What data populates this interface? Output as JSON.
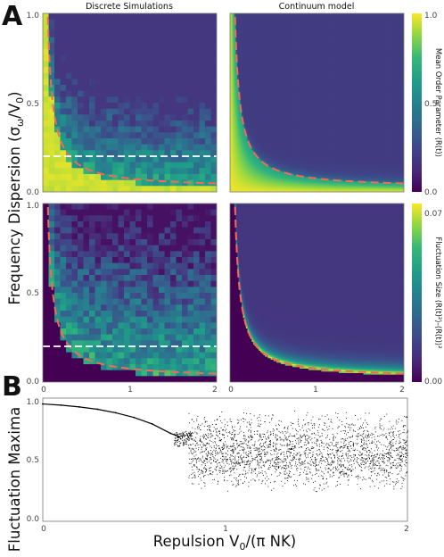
{
  "figure": {
    "panel_a_letter": "A",
    "panel_b_letter": "B",
    "col_title_left": "Discrete Simulations",
    "col_title_right": "Continuum model",
    "y_label_a": "Frequency Dispersion (σω/V0)",
    "y_label_a_parts": {
      "main": "Frequency Dispersion (σ",
      "sub1": "ω",
      "mid": "/V",
      "sub2": "0",
      "end": ")"
    },
    "y_label_b": "Fluctuation Maxima",
    "x_label": "Repulsion V0/(π NK)",
    "x_label_parts": {
      "main": "Repulsion V",
      "sub": "0",
      "end": "/(π NK)"
    },
    "colorbar_top": {
      "label": "Mean Order Parameter ⟨R(t)⟩",
      "label_main": "Mean Order Parameter  ",
      "label_sym": "⟨R(t)⟩",
      "ticks": [
        "1.0",
        "0.5",
        "0.0"
      ]
    },
    "colorbar_bottom": {
      "label": "Fluctuation Size ⟨R(t)²⟩-⟨R(t)⟩²",
      "label_main": "Fluctuation Size  ",
      "label_sym": "⟨R(t)²⟩-⟨R(t)⟩²",
      "ticks": [
        "0.07",
        "0.00"
      ]
    }
  },
  "chart_data": [
    {
      "type": "heatmap",
      "panel": "A-top-left",
      "title": "Discrete Simulations",
      "x_range": [
        0,
        2
      ],
      "y_range": [
        0,
        1
      ],
      "x_ticks": [],
      "y_ticks": [
        "1.0",
        "0.5",
        "0.0"
      ],
      "colorbar": "Mean Order Parameter ⟨R(t)⟩",
      "color_range": [
        0,
        1
      ],
      "dashed_reference": {
        "color": "#f46a55",
        "curve": "critical boundary"
      },
      "dashed_horizontal": {
        "y": 0.2,
        "color": "#ffffff"
      }
    },
    {
      "type": "heatmap",
      "panel": "A-top-right",
      "title": "Continuum model",
      "x_range": [
        0,
        2
      ],
      "y_range": [
        0,
        1
      ],
      "colorbar": "Mean Order Parameter ⟨R(t)⟩",
      "color_range": [
        0,
        1
      ],
      "dashed_reference": {
        "color": "#f46a55",
        "curve": "critical boundary"
      }
    },
    {
      "type": "heatmap",
      "panel": "A-bottom-left",
      "x_range": [
        0,
        2
      ],
      "y_range": [
        0,
        1
      ],
      "x_ticks": [
        "0",
        "1",
        "2"
      ],
      "y_ticks": [
        "1.0",
        "0.5",
        "0.0"
      ],
      "colorbar": "Fluctuation Size ⟨R(t)²⟩-⟨R(t)⟩²",
      "color_range": [
        0,
        0.07
      ],
      "dashed_reference": {
        "color": "#f46a55",
        "curve": "critical boundary"
      },
      "dashed_horizontal": {
        "y": 0.2,
        "color": "#ffffff"
      }
    },
    {
      "type": "heatmap",
      "panel": "A-bottom-right",
      "x_range": [
        0,
        2
      ],
      "y_range": [
        0,
        1
      ],
      "x_ticks": [
        "0",
        "1",
        "2"
      ],
      "colorbar": "Fluctuation Size ⟨R(t)²⟩-⟨R(t)⟩²",
      "color_range": [
        0,
        0.07
      ],
      "dashed_reference": {
        "color": "#f46a55",
        "curve": "critical boundary"
      }
    },
    {
      "type": "scatter",
      "panel": "B",
      "xlabel": "Repulsion V0/(π NK)",
      "ylabel": "Fluctuation Maxima",
      "xlim": [
        0,
        2
      ],
      "ylim": [
        0,
        1.05
      ],
      "x_ticks": [
        "0",
        "1",
        "2"
      ],
      "y_ticks": [
        "1.0",
        "0.5",
        "0.0"
      ],
      "description": "single-valued branch from 1.0 at x=0 decreasing to ~0.72 at x≈0.72, then a dense scattered band spanning ~0.05–0.95 for x from ~0.8 to 2",
      "branch_points": [
        {
          "x": 0.0,
          "y": 1.0
        },
        {
          "x": 0.1,
          "y": 0.99
        },
        {
          "x": 0.2,
          "y": 0.975
        },
        {
          "x": 0.3,
          "y": 0.955
        },
        {
          "x": 0.4,
          "y": 0.925
        },
        {
          "x": 0.5,
          "y": 0.885
        },
        {
          "x": 0.6,
          "y": 0.83
        },
        {
          "x": 0.7,
          "y": 0.75
        },
        {
          "x": 0.75,
          "y": 0.72
        }
      ],
      "scatter_band": {
        "x_start": 0.8,
        "x_end": 2.0,
        "y_min": 0.05,
        "y_max": 0.95
      },
      "marker_color": "#000000"
    }
  ]
}
